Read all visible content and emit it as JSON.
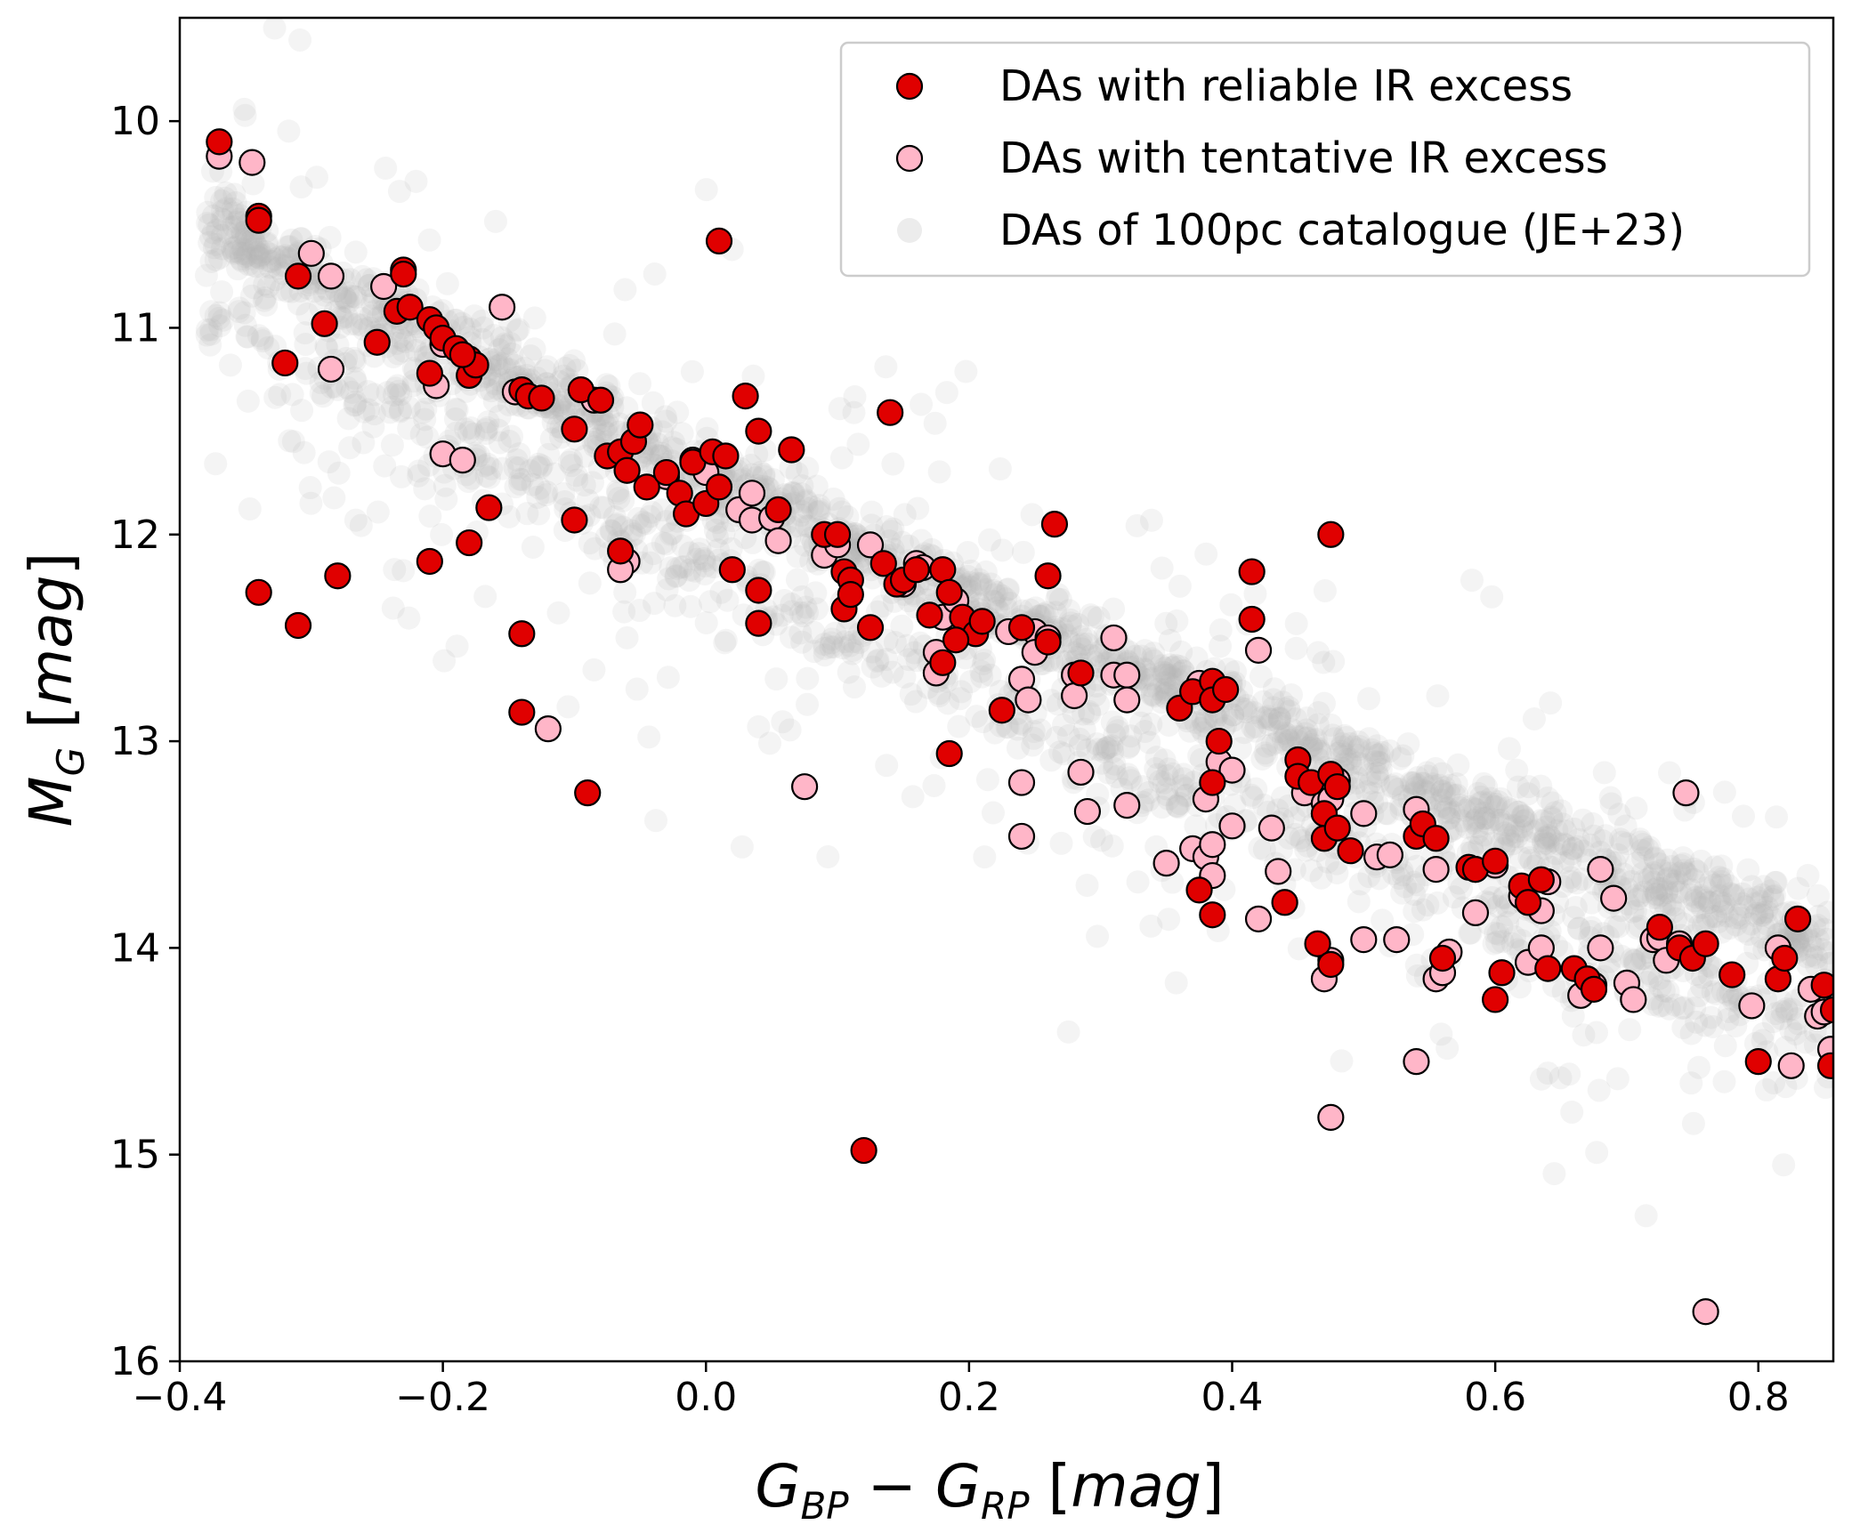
{
  "chart_data": {
    "type": "scatter",
    "x_axis": {
      "lim": [
        -0.4,
        0.857
      ],
      "ticks": [
        -0.4,
        -0.2,
        0.0,
        0.2,
        0.4,
        0.6,
        0.8
      ],
      "tick_labels": [
        "−0.4",
        "−0.2",
        "0.0",
        "0.2",
        "0.4",
        "0.6",
        "0.8"
      ]
    },
    "y_axis": {
      "lim": [
        16.0,
        9.5
      ],
      "inverted": true,
      "ticks": [
        10,
        11,
        12,
        13,
        14,
        15,
        16
      ],
      "tick_labels": [
        "10",
        "11",
        "12",
        "13",
        "14",
        "15",
        "16"
      ]
    },
    "legend": {
      "placement": "top-right"
    },
    "series": [
      {
        "name": "DAs with reliable IR excess",
        "color": "#e00000",
        "edgecolor": "#000000",
        "points": [
          [
            -0.37,
            10.1
          ],
          [
            -0.34,
            10.46
          ],
          [
            -0.34,
            10.48
          ],
          [
            -0.31,
            10.75
          ],
          [
            -0.29,
            10.98
          ],
          [
            -0.32,
            11.17
          ],
          [
            -0.34,
            12.28
          ],
          [
            -0.31,
            12.44
          ],
          [
            -0.28,
            12.2
          ],
          [
            -0.25,
            11.07
          ],
          [
            -0.235,
            10.92
          ],
          [
            -0.23,
            10.72
          ],
          [
            -0.23,
            10.74
          ],
          [
            -0.225,
            10.9
          ],
          [
            -0.21,
            10.96
          ],
          [
            -0.205,
            11.0
          ],
          [
            -0.2,
            11.05
          ],
          [
            -0.21,
            11.22
          ],
          [
            -0.19,
            11.1
          ],
          [
            -0.18,
            11.15
          ],
          [
            -0.18,
            11.23
          ],
          [
            -0.175,
            11.18
          ],
          [
            -0.185,
            11.13
          ],
          [
            -0.21,
            12.13
          ],
          [
            -0.18,
            12.04
          ],
          [
            -0.165,
            11.87
          ],
          [
            -0.14,
            11.3
          ],
          [
            -0.135,
            11.33
          ],
          [
            -0.125,
            11.34
          ],
          [
            -0.14,
            12.48
          ],
          [
            -0.14,
            12.86
          ],
          [
            -0.09,
            13.25
          ],
          [
            -0.1,
            11.93
          ],
          [
            -0.1,
            11.49
          ],
          [
            -0.095,
            11.3
          ],
          [
            -0.08,
            11.35
          ],
          [
            -0.075,
            11.62
          ],
          [
            -0.065,
            11.6
          ],
          [
            -0.06,
            11.69
          ],
          [
            -0.055,
            11.55
          ],
          [
            -0.05,
            11.47
          ],
          [
            -0.045,
            11.77
          ],
          [
            -0.065,
            12.08
          ],
          [
            -0.03,
            11.7
          ],
          [
            -0.02,
            11.8
          ],
          [
            -0.015,
            11.9
          ],
          [
            -0.01,
            11.65
          ],
          [
            0.0,
            11.85
          ],
          [
            0.005,
            11.6
          ],
          [
            0.01,
            11.77
          ],
          [
            0.015,
            11.62
          ],
          [
            0.01,
            10.58
          ],
          [
            0.03,
            11.33
          ],
          [
            0.04,
            11.5
          ],
          [
            0.02,
            12.17
          ],
          [
            0.04,
            12.27
          ],
          [
            0.04,
            12.43
          ],
          [
            0.055,
            11.88
          ],
          [
            0.065,
            11.59
          ],
          [
            0.09,
            12.0
          ],
          [
            0.1,
            12.0
          ],
          [
            0.105,
            12.18
          ],
          [
            0.11,
            12.22
          ],
          [
            0.105,
            12.36
          ],
          [
            0.11,
            12.29
          ],
          [
            0.125,
            12.45
          ],
          [
            0.135,
            12.14
          ],
          [
            0.14,
            11.41
          ],
          [
            0.145,
            12.24
          ],
          [
            0.15,
            12.22
          ],
          [
            0.16,
            12.17
          ],
          [
            0.17,
            12.39
          ],
          [
            0.18,
            12.17
          ],
          [
            0.185,
            12.28
          ],
          [
            0.195,
            12.4
          ],
          [
            0.205,
            12.48
          ],
          [
            0.21,
            12.42
          ],
          [
            0.19,
            12.51
          ],
          [
            0.18,
            12.62
          ],
          [
            0.185,
            13.06
          ],
          [
            0.225,
            12.85
          ],
          [
            0.24,
            12.45
          ],
          [
            0.26,
            12.2
          ],
          [
            0.265,
            11.95
          ],
          [
            0.26,
            12.52
          ],
          [
            0.285,
            12.67
          ],
          [
            0.36,
            12.84
          ],
          [
            0.37,
            12.76
          ],
          [
            0.375,
            13.72
          ],
          [
            0.385,
            12.71
          ],
          [
            0.385,
            12.8
          ],
          [
            0.395,
            12.75
          ],
          [
            0.39,
            13.0
          ],
          [
            0.385,
            13.2
          ],
          [
            0.385,
            13.84
          ],
          [
            0.415,
            12.18
          ],
          [
            0.415,
            12.41
          ],
          [
            0.44,
            13.78
          ],
          [
            0.45,
            13.09
          ],
          [
            0.45,
            13.17
          ],
          [
            0.46,
            13.2
          ],
          [
            0.465,
            13.98
          ],
          [
            0.47,
            13.47
          ],
          [
            0.475,
            13.16
          ],
          [
            0.48,
            13.22
          ],
          [
            0.47,
            13.35
          ],
          [
            0.475,
            12.0
          ],
          [
            0.48,
            13.42
          ],
          [
            0.475,
            14.08
          ],
          [
            0.49,
            13.53
          ],
          [
            0.54,
            13.46
          ],
          [
            0.545,
            13.4
          ],
          [
            0.555,
            13.47
          ],
          [
            0.56,
            14.05
          ],
          [
            0.58,
            13.61
          ],
          [
            0.585,
            13.62
          ],
          [
            0.6,
            13.58
          ],
          [
            0.6,
            14.25
          ],
          [
            0.605,
            14.12
          ],
          [
            0.62,
            13.7
          ],
          [
            0.625,
            13.78
          ],
          [
            0.635,
            13.67
          ],
          [
            0.64,
            14.1
          ],
          [
            0.66,
            14.1
          ],
          [
            0.67,
            14.15
          ],
          [
            0.675,
            14.2
          ],
          [
            0.725,
            13.9
          ],
          [
            0.74,
            14.0
          ],
          [
            0.75,
            14.05
          ],
          [
            0.76,
            13.98
          ],
          [
            0.78,
            14.13
          ],
          [
            0.8,
            14.55
          ],
          [
            0.815,
            14.15
          ],
          [
            0.82,
            14.05
          ],
          [
            0.83,
            13.86
          ],
          [
            0.85,
            14.18
          ],
          [
            0.855,
            14.57
          ],
          [
            0.857,
            14.3
          ],
          [
            0.12,
            14.98
          ]
        ]
      },
      {
        "name": "DAs with tentative IR excess",
        "color": "#ffb6c8",
        "edgecolor": "#000000",
        "points": [
          [
            -0.37,
            10.17
          ],
          [
            -0.345,
            10.2
          ],
          [
            -0.3,
            10.64
          ],
          [
            -0.285,
            10.75
          ],
          [
            -0.285,
            11.2
          ],
          [
            -0.245,
            10.8
          ],
          [
            -0.2,
            11.08
          ],
          [
            -0.205,
            11.28
          ],
          [
            -0.2,
            11.61
          ],
          [
            -0.185,
            11.64
          ],
          [
            -0.155,
            10.9
          ],
          [
            -0.145,
            11.31
          ],
          [
            -0.085,
            11.35
          ],
          [
            -0.06,
            12.13
          ],
          [
            -0.065,
            12.17
          ],
          [
            -0.12,
            12.94
          ],
          [
            -0.03,
            11.72
          ],
          [
            -0.01,
            11.64
          ],
          [
            0.0,
            11.7
          ],
          [
            0.025,
            11.88
          ],
          [
            0.035,
            11.8
          ],
          [
            0.035,
            11.93
          ],
          [
            0.05,
            11.92
          ],
          [
            0.055,
            12.03
          ],
          [
            0.075,
            13.22
          ],
          [
            0.09,
            12.1
          ],
          [
            0.1,
            12.05
          ],
          [
            0.125,
            12.05
          ],
          [
            0.15,
            12.24
          ],
          [
            0.16,
            12.14
          ],
          [
            0.165,
            12.16
          ],
          [
            0.18,
            12.4
          ],
          [
            0.19,
            12.32
          ],
          [
            0.175,
            12.57
          ],
          [
            0.175,
            12.67
          ],
          [
            0.23,
            12.47
          ],
          [
            0.25,
            12.47
          ],
          [
            0.25,
            12.57
          ],
          [
            0.24,
            12.7
          ],
          [
            0.245,
            12.8
          ],
          [
            0.24,
            13.2
          ],
          [
            0.24,
            13.46
          ],
          [
            0.26,
            12.5
          ],
          [
            0.28,
            12.68
          ],
          [
            0.28,
            12.78
          ],
          [
            0.285,
            13.15
          ],
          [
            0.29,
            13.34
          ],
          [
            0.31,
            12.68
          ],
          [
            0.31,
            12.5
          ],
          [
            0.32,
            12.68
          ],
          [
            0.32,
            12.8
          ],
          [
            0.32,
            13.31
          ],
          [
            0.35,
            13.59
          ],
          [
            0.37,
            13.52
          ],
          [
            0.375,
            12.72
          ],
          [
            0.38,
            13.28
          ],
          [
            0.38,
            13.56
          ],
          [
            0.385,
            13.5
          ],
          [
            0.385,
            13.65
          ],
          [
            0.39,
            13.1
          ],
          [
            0.4,
            13.14
          ],
          [
            0.4,
            13.41
          ],
          [
            0.42,
            12.56
          ],
          [
            0.42,
            13.86
          ],
          [
            0.43,
            13.42
          ],
          [
            0.435,
            13.63
          ],
          [
            0.455,
            13.25
          ],
          [
            0.47,
            13.3
          ],
          [
            0.47,
            13.35
          ],
          [
            0.475,
            13.28
          ],
          [
            0.48,
            13.19
          ],
          [
            0.47,
            14.15
          ],
          [
            0.475,
            14.06
          ],
          [
            0.475,
            14.82
          ],
          [
            0.5,
            13.35
          ],
          [
            0.5,
            13.96
          ],
          [
            0.51,
            13.56
          ],
          [
            0.52,
            13.55
          ],
          [
            0.525,
            13.96
          ],
          [
            0.54,
            13.33
          ],
          [
            0.54,
            14.55
          ],
          [
            0.555,
            13.62
          ],
          [
            0.555,
            14.15
          ],
          [
            0.56,
            14.12
          ],
          [
            0.565,
            14.02
          ],
          [
            0.585,
            13.62
          ],
          [
            0.585,
            13.83
          ],
          [
            0.6,
            13.6
          ],
          [
            0.62,
            13.75
          ],
          [
            0.625,
            14.07
          ],
          [
            0.635,
            13.82
          ],
          [
            0.635,
            14.0
          ],
          [
            0.64,
            13.68
          ],
          [
            0.665,
            14.23
          ],
          [
            0.675,
            14.18
          ],
          [
            0.68,
            13.62
          ],
          [
            0.68,
            14.0
          ],
          [
            0.69,
            13.76
          ],
          [
            0.7,
            14.17
          ],
          [
            0.705,
            14.25
          ],
          [
            0.72,
            13.96
          ],
          [
            0.725,
            13.95
          ],
          [
            0.73,
            14.06
          ],
          [
            0.74,
            13.98
          ],
          [
            0.745,
            13.25
          ],
          [
            0.76,
            15.76
          ],
          [
            0.795,
            14.28
          ],
          [
            0.815,
            14.0
          ],
          [
            0.825,
            14.57
          ],
          [
            0.84,
            14.2
          ],
          [
            0.845,
            14.33
          ],
          [
            0.85,
            14.31
          ],
          [
            0.855,
            14.49
          ]
        ]
      },
      {
        "name": "DAs of 100pc catalogue (JE+23)",
        "color": "#b4b4b4",
        "opacity": 0.15,
        "generated": true
      }
    ]
  }
}
